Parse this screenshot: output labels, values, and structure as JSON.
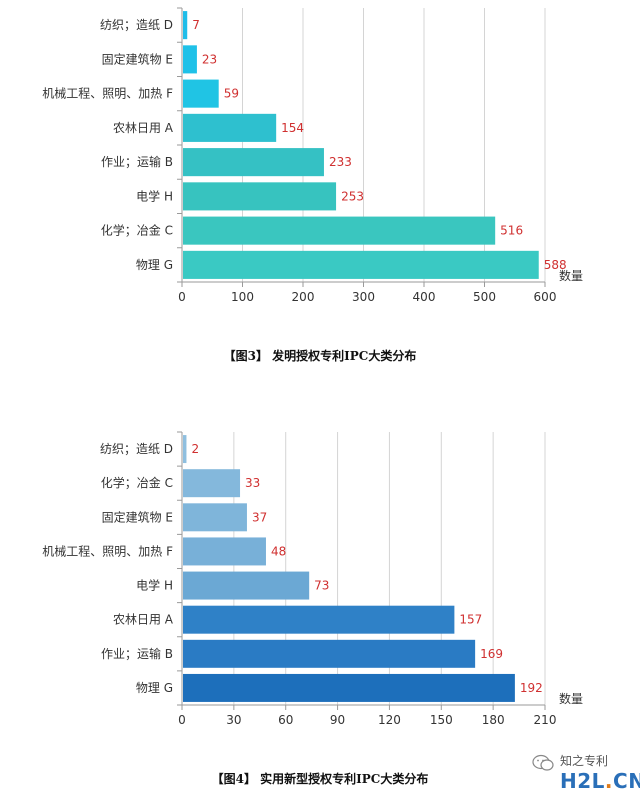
{
  "chart_data": [
    {
      "type": "bar",
      "orientation": "horizontal",
      "categories": [
        "纺织；造纸 D",
        "固定建筑物 E",
        "机械工程、照明、加热 F",
        "农林日用 A",
        "作业；运输 B",
        "电学 H",
        "化学；冶金 C",
        "物理 G"
      ],
      "values": [
        7,
        23,
        59,
        154,
        233,
        253,
        516,
        588
      ],
      "colors": [
        "#1fbde9",
        "#1fc1e8",
        "#20c4e4",
        "#2ec0cf",
        "#35c1c4",
        "#37c3bf",
        "#3ac6bf",
        "#3ac9c3"
      ],
      "xlim": [
        0,
        600
      ],
      "xticks": [
        0,
        100,
        200,
        300,
        400,
        500,
        600
      ],
      "xlabel": "数量",
      "grid": true,
      "title": "【图3】 发明授权专利IPC大类分布"
    },
    {
      "type": "bar",
      "orientation": "horizontal",
      "categories": [
        "纺织；造纸 D",
        "化学；冶金 C",
        "固定建筑物 E",
        "机械工程、照明、加热 F",
        "电学 H",
        "农林日用 A",
        "作业；运输 B",
        "物理 G"
      ],
      "values": [
        2,
        33,
        37,
        48,
        73,
        157,
        169,
        192
      ],
      "colors": [
        "#8fbfdf",
        "#84b8dc",
        "#7fb5da",
        "#78b0d8",
        "#6ba8d4",
        "#2f81c7",
        "#2a7bc4",
        "#1d6fbb"
      ],
      "xlim": [
        0,
        210
      ],
      "xticks": [
        0,
        30,
        60,
        90,
        120,
        150,
        180,
        210
      ],
      "xlabel": "数量",
      "grid": true,
      "title": "【图4】 实用新型授权专利IPC大类分布"
    }
  ],
  "watermark": {
    "small_text": "知之专利",
    "logo_main": "H2L",
    "logo_dot": ".",
    "logo_tail": "CN"
  },
  "label_color": "#d03030"
}
